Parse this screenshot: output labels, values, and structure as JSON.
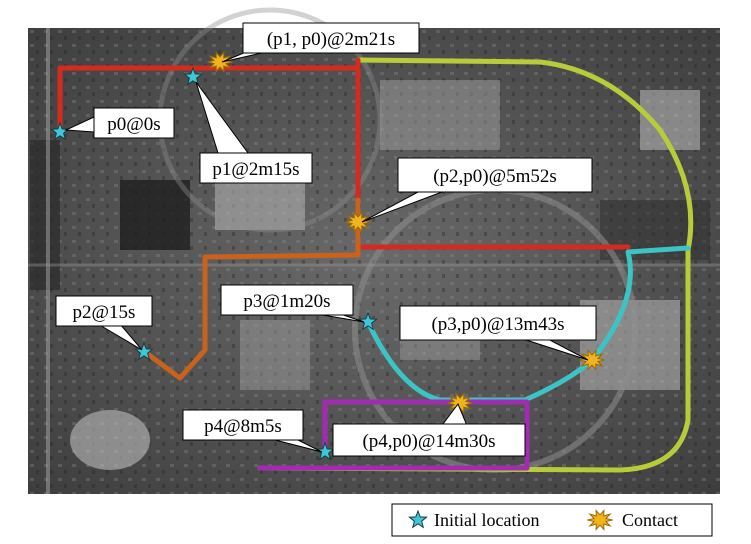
{
  "colors": {
    "route_p0": "#b8cc3a",
    "route_p1": "#d42a20",
    "route_p2": "#c9621c",
    "route_p3": "#3cc4c4",
    "route_p4": "#a02cb0",
    "start_marker": "#3cc8d8",
    "contact_marker": "#f0b41e",
    "contact_marker_outline": "#9a6a00"
  },
  "callouts": {
    "p0_start": "p0@0s",
    "p1_start": "p1@2m15s",
    "p2_start": "p2@15s",
    "p3_start": "p3@1m20s",
    "p4_start": "p4@8m5s",
    "contact_p1_p0": "(p1, p0)@2m21s",
    "contact_p2_p0": "(p2,p0)@5m52s",
    "contact_p3_p0": "(p3,p0)@13m43s",
    "contact_p4_p0": "(p4,p0)@14m30s"
  },
  "legend": {
    "initial_location": "Initial location",
    "contact": "Contact",
    "initial_icon": "star-icon",
    "contact_icon": "burst-icon"
  }
}
